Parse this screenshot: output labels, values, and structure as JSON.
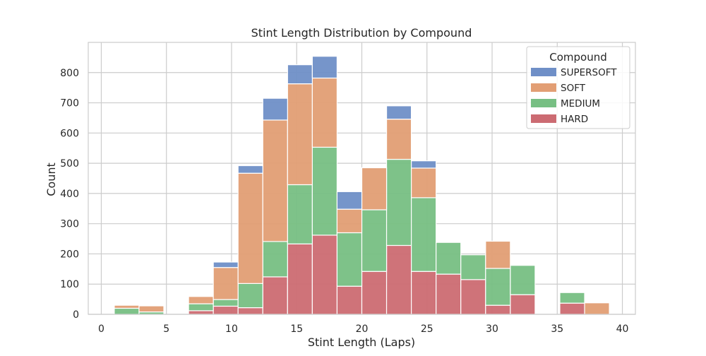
{
  "chart_data": {
    "type": "bar",
    "stacked": true,
    "title": "Stint Length Distribution by Compound",
    "xlabel": "Stint Length (Laps)",
    "ylabel": "Count",
    "xlim": [
      -1,
      41
    ],
    "ylim": [
      0,
      900
    ],
    "xticks": [
      "0",
      "5",
      "10",
      "15",
      "20",
      "25",
      "30",
      "35",
      "40"
    ],
    "yticks": [
      "0",
      "100",
      "200",
      "300",
      "400",
      "500",
      "600",
      "700",
      "800"
    ],
    "grid": true,
    "legend_position": "top-right",
    "legend_title": "Compound",
    "bins": [
      [
        1,
        2.9
      ],
      [
        2.9,
        4.8
      ],
      [
        4.8,
        6.7
      ],
      [
        6.7,
        8.6
      ],
      [
        8.6,
        10.5
      ],
      [
        10.5,
        12.4
      ],
      [
        12.4,
        14.3
      ],
      [
        14.3,
        16.2
      ],
      [
        16.2,
        18.1
      ],
      [
        18.1,
        20
      ],
      [
        20,
        21.9
      ],
      [
        21.9,
        23.8
      ],
      [
        23.8,
        25.7
      ],
      [
        25.7,
        27.6
      ],
      [
        27.6,
        29.5
      ],
      [
        29.5,
        31.4
      ],
      [
        31.4,
        33.3
      ],
      [
        33.3,
        35.2
      ],
      [
        35.2,
        37.1
      ],
      [
        37.1,
        39
      ]
    ],
    "series": [
      {
        "name": "HARD",
        "color": "#cc6b72",
        "values": [
          0,
          0,
          0,
          12,
          27,
          22,
          124,
          233,
          262,
          93,
          142,
          228,
          142,
          133,
          115,
          30,
          65,
          0,
          37,
          0
        ]
      },
      {
        "name": "MEDIUM",
        "color": "#77bf83",
        "values": [
          20,
          8,
          0,
          23,
          22,
          80,
          117,
          196,
          291,
          177,
          204,
          285,
          244,
          105,
          82,
          122,
          97,
          0,
          35,
          0
        ]
      },
      {
        "name": "SOFT",
        "color": "#e29e74",
        "values": [
          10,
          20,
          0,
          24,
          106,
          365,
          402,
          334,
          229,
          78,
          139,
          133,
          98,
          0,
          0,
          90,
          0,
          0,
          0,
          38
        ]
      },
      {
        "name": "SUPERSOFT",
        "color": "#6f8fc7",
        "values": [
          0,
          0,
          0,
          0,
          18,
          25,
          72,
          63,
          72,
          58,
          0,
          44,
          24,
          0,
          0,
          0,
          0,
          0,
          0,
          0
        ]
      }
    ],
    "legend_order": [
      "SUPERSOFT",
      "SOFT",
      "MEDIUM",
      "HARD"
    ]
  }
}
